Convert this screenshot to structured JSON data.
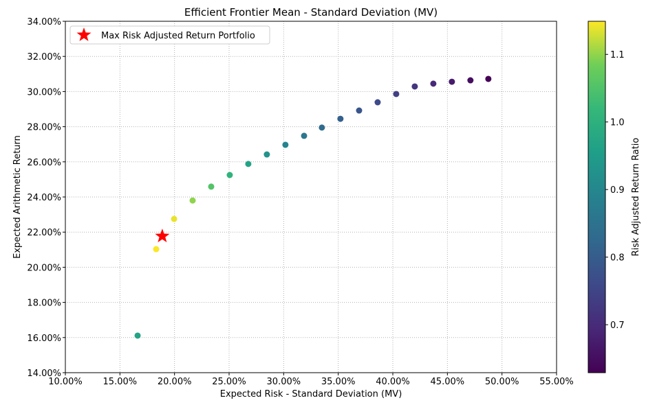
{
  "chart_data": {
    "type": "scatter",
    "title": "Efficient Frontier Mean - Standard Deviation (MV)",
    "xlabel": "Expected Risk - Standard Deviation (MV)",
    "ylabel": "Expected Arithmetic Return",
    "xlim": [
      10,
      55
    ],
    "ylim": [
      14,
      34
    ],
    "x_ticks": [
      "10.00%",
      "15.00%",
      "20.00%",
      "25.00%",
      "30.00%",
      "35.00%",
      "40.00%",
      "45.00%",
      "50.00%",
      "55.00%"
    ],
    "y_ticks": [
      "14.00%",
      "16.00%",
      "18.00%",
      "20.00%",
      "22.00%",
      "24.00%",
      "26.00%",
      "28.00%",
      "30.00%",
      "32.00%",
      "34.00%"
    ],
    "grid": true,
    "points": [
      {
        "x": 16.62,
        "y": 16.11
      },
      {
        "x": 18.32,
        "y": 21.03
      },
      {
        "x": 19.96,
        "y": 22.75
      },
      {
        "x": 21.66,
        "y": 23.8
      },
      {
        "x": 23.36,
        "y": 24.59
      },
      {
        "x": 25.06,
        "y": 25.25
      },
      {
        "x": 26.76,
        "y": 25.88
      },
      {
        "x": 28.46,
        "y": 26.42
      },
      {
        "x": 30.16,
        "y": 26.97
      },
      {
        "x": 31.87,
        "y": 27.48
      },
      {
        "x": 33.5,
        "y": 27.95
      },
      {
        "x": 35.2,
        "y": 28.45
      },
      {
        "x": 36.91,
        "y": 28.92
      },
      {
        "x": 38.61,
        "y": 29.39
      },
      {
        "x": 40.31,
        "y": 29.86
      },
      {
        "x": 42.01,
        "y": 30.29
      },
      {
        "x": 43.71,
        "y": 30.45
      },
      {
        "x": 45.41,
        "y": 30.56
      },
      {
        "x": 47.11,
        "y": 30.64
      },
      {
        "x": 48.75,
        "y": 30.72
      }
    ],
    "highlight": {
      "label": "Max Risk Adjusted Return Portfolio",
      "x": 18.88,
      "y": 21.77,
      "color": "#ff0000"
    },
    "legend_position": "upper-left",
    "colorbar": {
      "label": "Risk Adjusted Return Ratio",
      "range": [
        0.629,
        1.149
      ],
      "ticks": [
        "0.7",
        "0.8",
        "0.9",
        "1.0",
        "1.1"
      ],
      "tick_values": [
        0.7,
        0.8,
        0.9,
        1.0,
        1.1
      ],
      "colormap": "viridis"
    }
  }
}
